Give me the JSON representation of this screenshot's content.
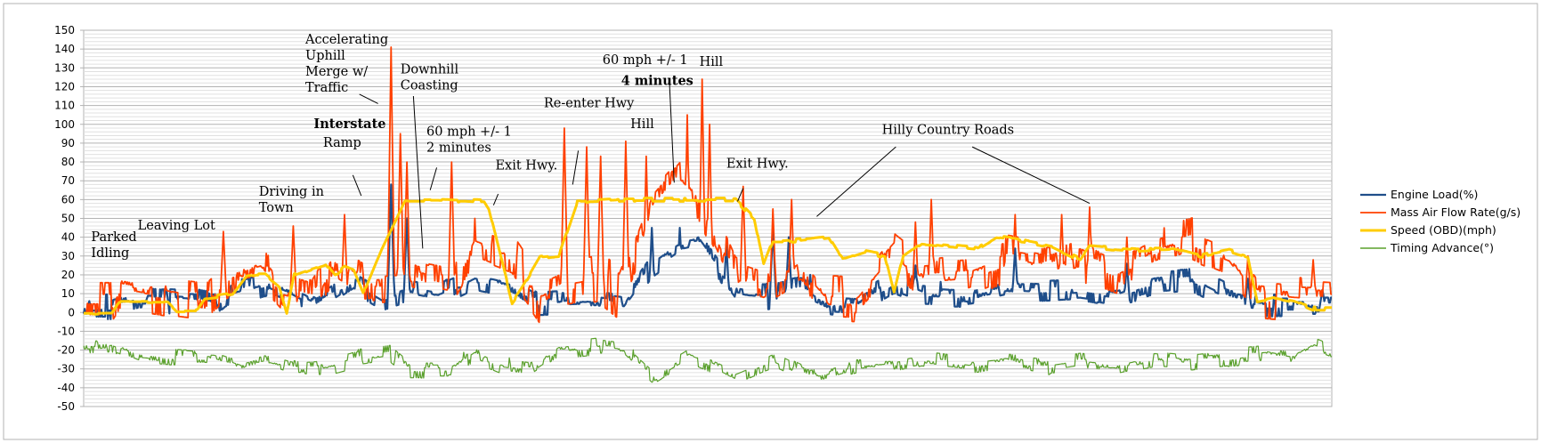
{
  "chart_data": {
    "type": "line",
    "title": "",
    "xlabel": "",
    "ylabel": "",
    "ylim": [
      -50,
      150
    ],
    "yticks": [
      150,
      140,
      130,
      120,
      110,
      100,
      90,
      80,
      70,
      60,
      50,
      40,
      30,
      20,
      10,
      0,
      -10,
      -20,
      -30,
      -40,
      -50
    ],
    "x_count": 1341,
    "legend_position": "right",
    "grid": true,
    "series": [
      {
        "name": "Engine Load(%)",
        "color": "#1f4e8a",
        "width": 2.2,
        "base": [
          [
            0,
            3
          ],
          [
            30,
            3
          ],
          [
            60,
            7
          ],
          [
            120,
            6
          ],
          [
            140,
            4
          ],
          [
            160,
            10
          ],
          [
            200,
            16
          ],
          [
            220,
            12
          ],
          [
            250,
            4
          ],
          [
            290,
            17
          ],
          [
            320,
            8
          ],
          [
            345,
            12
          ],
          [
            380,
            9
          ],
          [
            400,
            13
          ],
          [
            420,
            18
          ],
          [
            460,
            14
          ],
          [
            490,
            5
          ],
          [
            550,
            6
          ],
          [
            580,
            4
          ],
          [
            610,
            25
          ],
          [
            640,
            36
          ],
          [
            660,
            38
          ],
          [
            700,
            10
          ],
          [
            730,
            8
          ],
          [
            770,
            12
          ],
          [
            800,
            5
          ],
          [
            830,
            4
          ],
          [
            870,
            16
          ],
          [
            900,
            10
          ],
          [
            950,
            9
          ],
          [
            990,
            13
          ],
          [
            1030,
            12
          ],
          [
            1070,
            13
          ],
          [
            1110,
            10
          ],
          [
            1150,
            16
          ],
          [
            1190,
            18
          ],
          [
            1230,
            8
          ],
          [
            1270,
            4
          ],
          [
            1341,
            4
          ]
        ],
        "noise": 7,
        "spikes": [
          [
            330,
            68
          ],
          [
            347,
            50
          ],
          [
            420,
            17
          ],
          [
            610,
            45
          ],
          [
            640,
            45
          ],
          [
            690,
            36
          ],
          [
            740,
            45
          ],
          [
            757,
            40
          ],
          [
            780,
            20
          ],
          [
            893,
            25
          ],
          [
            1000,
            34
          ],
          [
            1120,
            26
          ],
          [
            1250,
            18
          ],
          [
            1330,
            12
          ]
        ]
      },
      {
        "name": "Mass Air Flow Rate(g/s)",
        "color": "#ff4000",
        "width": 1.8,
        "base": [
          [
            0,
            7
          ],
          [
            30,
            7
          ],
          [
            40,
            15
          ],
          [
            100,
            10
          ],
          [
            130,
            8
          ],
          [
            160,
            22
          ],
          [
            190,
            26
          ],
          [
            215,
            12
          ],
          [
            245,
            7
          ],
          [
            270,
            28
          ],
          [
            300,
            18
          ],
          [
            340,
            20
          ],
          [
            370,
            14
          ],
          [
            390,
            12
          ],
          [
            420,
            38
          ],
          [
            460,
            30
          ],
          [
            490,
            8
          ],
          [
            520,
            15
          ],
          [
            555,
            18
          ],
          [
            575,
            10
          ],
          [
            610,
            55
          ],
          [
            640,
            72
          ],
          [
            660,
            62
          ],
          [
            700,
            18
          ],
          [
            730,
            13
          ],
          [
            770,
            25
          ],
          [
            800,
            8
          ],
          [
            830,
            7
          ],
          [
            870,
            30
          ],
          [
            900,
            18
          ],
          [
            950,
            20
          ],
          [
            990,
            28
          ],
          [
            1030,
            24
          ],
          [
            1070,
            30
          ],
          [
            1110,
            22
          ],
          [
            1150,
            32
          ],
          [
            1190,
            38
          ],
          [
            1230,
            30
          ],
          [
            1260,
            10
          ],
          [
            1300,
            8
          ],
          [
            1341,
            7
          ]
        ],
        "noise": 14,
        "spikes": [
          [
            150,
            43
          ],
          [
            225,
            46
          ],
          [
            280,
            52
          ],
          [
            330,
            141
          ],
          [
            340,
            95
          ],
          [
            347,
            80
          ],
          [
            395,
            80
          ],
          [
            420,
            50
          ],
          [
            428,
            35
          ],
          [
            516,
            98
          ],
          [
            540,
            88
          ],
          [
            555,
            83
          ],
          [
            582,
            91
          ],
          [
            604,
            83
          ],
          [
            648,
            105
          ],
          [
            664,
            124
          ],
          [
            672,
            100
          ],
          [
            708,
            67
          ],
          [
            740,
            55
          ],
          [
            760,
            60
          ],
          [
            893,
            48
          ],
          [
            910,
            60
          ],
          [
            1000,
            52
          ],
          [
            1050,
            52
          ],
          [
            1080,
            56
          ],
          [
            1120,
            40
          ],
          [
            1160,
            45
          ],
          [
            1250,
            30
          ],
          [
            1320,
            28
          ]
        ]
      },
      {
        "name": "Speed (OBD)(mph)",
        "color": "#ffcc00",
        "width": 3,
        "base": [
          [
            0,
            0
          ],
          [
            30,
            0
          ],
          [
            40,
            6
          ],
          [
            90,
            6
          ],
          [
            100,
            1
          ],
          [
            120,
            1
          ],
          [
            130,
            8
          ],
          [
            160,
            10
          ],
          [
            175,
            20
          ],
          [
            195,
            20
          ],
          [
            210,
            14
          ],
          [
            218,
            0
          ],
          [
            226,
            20
          ],
          [
            260,
            26
          ],
          [
            270,
            20
          ],
          [
            280,
            24
          ],
          [
            290,
            22
          ],
          [
            300,
            10
          ],
          [
            320,
            34
          ],
          [
            345,
            60
          ],
          [
            380,
            60
          ],
          [
            430,
            59
          ],
          [
            435,
            55
          ],
          [
            460,
            5
          ],
          [
            470,
            12
          ],
          [
            490,
            29
          ],
          [
            510,
            30
          ],
          [
            530,
            59
          ],
          [
            580,
            60
          ],
          [
            640,
            60
          ],
          [
            700,
            60
          ],
          [
            720,
            50
          ],
          [
            730,
            25
          ],
          [
            740,
            38
          ],
          [
            760,
            38
          ],
          [
            800,
            40
          ],
          [
            815,
            28
          ],
          [
            840,
            32
          ],
          [
            860,
            30
          ],
          [
            870,
            10
          ],
          [
            880,
            30
          ],
          [
            900,
            37
          ],
          [
            960,
            34
          ],
          [
            980,
            40
          ],
          [
            1010,
            38
          ],
          [
            1040,
            35
          ],
          [
            1070,
            28
          ],
          [
            1080,
            35
          ],
          [
            1130,
            33
          ],
          [
            1170,
            34
          ],
          [
            1200,
            30
          ],
          [
            1230,
            33
          ],
          [
            1250,
            30
          ],
          [
            1260,
            6
          ],
          [
            1280,
            8
          ],
          [
            1300,
            6
          ],
          [
            1320,
            2
          ],
          [
            1341,
            2
          ]
        ],
        "noise": 2
      },
      {
        "name": "Timing Advance(°)",
        "color": "#5aa02c",
        "width": 1.2,
        "base": [
          [
            0,
            -17
          ],
          [
            30,
            -16
          ],
          [
            60,
            -22
          ],
          [
            100,
            -24
          ],
          [
            140,
            -25
          ],
          [
            170,
            -30
          ],
          [
            200,
            -26
          ],
          [
            230,
            -30
          ],
          [
            260,
            -29
          ],
          [
            290,
            -25
          ],
          [
            330,
            -22
          ],
          [
            350,
            -30
          ],
          [
            395,
            -30
          ],
          [
            420,
            -22
          ],
          [
            450,
            -28
          ],
          [
            480,
            -30
          ],
          [
            510,
            -20
          ],
          [
            550,
            -18
          ],
          [
            580,
            -20
          ],
          [
            610,
            -34
          ],
          [
            650,
            -22
          ],
          [
            700,
            -33
          ],
          [
            740,
            -25
          ],
          [
            780,
            -34
          ],
          [
            800,
            -32
          ],
          [
            830,
            -28
          ],
          [
            870,
            -28
          ],
          [
            900,
            -25
          ],
          [
            950,
            -28
          ],
          [
            990,
            -26
          ],
          [
            1030,
            -29
          ],
          [
            1070,
            -26
          ],
          [
            1110,
            -28
          ],
          [
            1150,
            -24
          ],
          [
            1190,
            -26
          ],
          [
            1230,
            -24
          ],
          [
            1270,
            -22
          ],
          [
            1300,
            -25
          ],
          [
            1320,
            -18
          ],
          [
            1341,
            -22
          ]
        ],
        "noise": 5
      }
    ],
    "annotations": [
      {
        "lines": [
          "Parked",
          "Idling"
        ],
        "x": 8,
        "y": 38,
        "bold": false
      },
      {
        "lines": [
          "Leaving Lot"
        ],
        "x": 58,
        "y": 44,
        "bold": false
      },
      {
        "lines": [
          "Driving in",
          "Town"
        ],
        "x": 188,
        "y": 62,
        "bold": false
      },
      {
        "lines": [
          "Accelerating",
          "Uphill",
          "Merge w/",
          "Traffic"
        ],
        "x": 238,
        "y": 143,
        "bold": false
      },
      {
        "lines": [
          "Interstate"
        ],
        "x": 247,
        "y": 98,
        "bold": true
      },
      {
        "lines": [
          "Ramp"
        ],
        "x": 257,
        "y": 88,
        "bold": false
      },
      {
        "lines": [
          "Downhill",
          "Coasting"
        ],
        "x": 340,
        "y": 127,
        "bold": false
      },
      {
        "lines": [
          "60 mph +/- 1",
          "2 minutes"
        ],
        "x": 368,
        "y": 94,
        "bold": false
      },
      {
        "lines": [
          "Exit Hwy."
        ],
        "x": 442,
        "y": 76,
        "bold": false
      },
      {
        "lines": [
          "Re-enter Hwy"
        ],
        "x": 494,
        "y": 109,
        "bold": false
      },
      {
        "lines": [
          "Hill"
        ],
        "x": 587,
        "y": 98,
        "bold": false
      },
      {
        "lines": [
          "60 mph +/- 1"
        ],
        "x": 557,
        "y": 132,
        "bold": false
      },
      {
        "lines": [
          "4 minutes"
        ],
        "x": 577,
        "y": 121,
        "bold": true
      },
      {
        "lines": [
          "Hill"
        ],
        "x": 661,
        "y": 131,
        "bold": false
      },
      {
        "lines": [
          "Exit Hwy."
        ],
        "x": 690,
        "y": 77,
        "bold": false
      },
      {
        "lines": [
          "Hilly Country Roads"
        ],
        "x": 857,
        "y": 95,
        "bold": false
      }
    ],
    "pointers": [
      [
        [
          296,
          116
        ],
        [
          316,
          111
        ]
      ],
      [
        [
          289,
          73
        ],
        [
          298,
          62
        ]
      ],
      [
        [
          354,
          115
        ],
        [
          364,
          34
        ]
      ],
      [
        [
          372,
          65
        ],
        [
          379,
          77
        ]
      ],
      [
        [
          445,
          63
        ],
        [
          440,
          57
        ]
      ],
      [
        [
          525,
          68
        ],
        [
          531,
          86
        ]
      ],
      [
        [
          629,
          121
        ],
        [
          634,
          69
        ]
      ],
      [
        [
          708,
          66
        ],
        [
          702,
          59
        ]
      ],
      [
        [
          872,
          88
        ],
        [
          787,
          51
        ]
      ],
      [
        [
          954,
          88
        ],
        [
          1080,
          58
        ]
      ]
    ]
  }
}
